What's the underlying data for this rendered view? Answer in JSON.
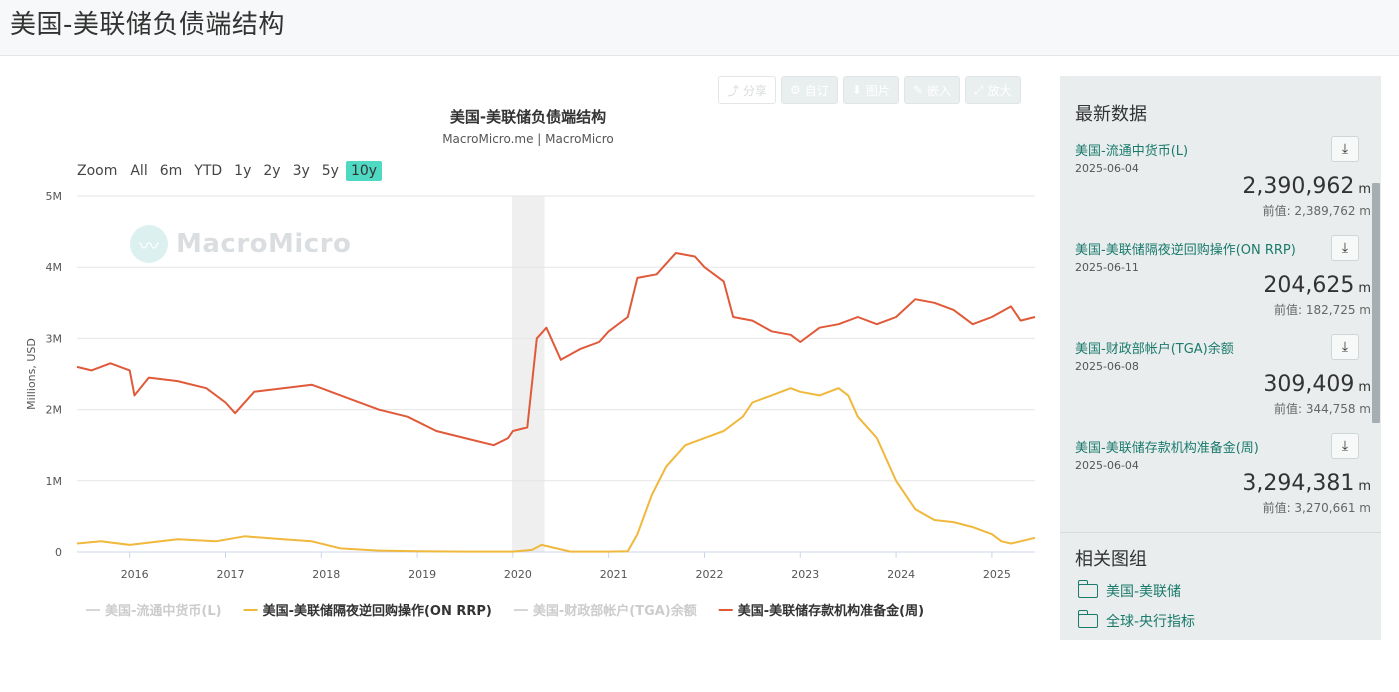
{
  "page": {
    "title": "美国-美联储负债端结构"
  },
  "toolbar": {
    "share": "分享",
    "custom": "自订",
    "image": "图片",
    "embed": "嵌入",
    "zoom": "放大"
  },
  "chart": {
    "title": "美国-美联储负债端结构",
    "subtitle": "MacroMicro.me | MacroMicro",
    "watermark": "MacroMicro",
    "zoom_label": "Zoom",
    "zoom_options": [
      "All",
      "6m",
      "YTD",
      "1y",
      "2y",
      "3y",
      "5y",
      "10y"
    ],
    "zoom_active": "10y",
    "legend": [
      {
        "label": "美国-流通中货币(L)",
        "color": "#d6d6d6",
        "active": false
      },
      {
        "label": "美国-美联储隔夜逆回购操作(ON RRP)",
        "color": "#f0b83c",
        "active": true
      },
      {
        "label": "美国-财政部帐户(TGA)余额",
        "color": "#d6d6d6",
        "active": false
      },
      {
        "label": "美国-美联储存款机构准备金(周)",
        "color": "#e05a3a",
        "active": true
      }
    ]
  },
  "chart_data": {
    "type": "line",
    "ylabel": "Millions, USD",
    "ylim": [
      0,
      5000000
    ],
    "y_ticks": [
      "0",
      "1M",
      "2M",
      "3M",
      "4M",
      "5M"
    ],
    "x_ticks": [
      "2016",
      "2017",
      "2018",
      "2019",
      "2020",
      "2021",
      "2022",
      "2023",
      "2024",
      "2025"
    ],
    "xlim": [
      2015.45,
      2025.45
    ],
    "shaded_band": [
      2019.99,
      2020.33
    ],
    "series": [
      {
        "name": "美国-美联储存款机构准备金(周)",
        "color": "#e05a3a",
        "x": [
          2015.45,
          2015.6,
          2015.8,
          2016.0,
          2016.05,
          2016.2,
          2016.5,
          2016.8,
          2017.0,
          2017.1,
          2017.3,
          2017.6,
          2017.9,
          2018.0,
          2018.3,
          2018.6,
          2018.9,
          2019.2,
          2019.5,
          2019.8,
          2019.95,
          2020.0,
          2020.15,
          2020.25,
          2020.35,
          2020.5,
          2020.7,
          2020.9,
          2021.0,
          2021.2,
          2021.3,
          2021.5,
          2021.7,
          2021.9,
          2022.0,
          2022.2,
          2022.3,
          2022.5,
          2022.7,
          2022.9,
          2023.0,
          2023.2,
          2023.4,
          2023.6,
          2023.8,
          2024.0,
          2024.2,
          2024.4,
          2024.6,
          2024.8,
          2025.0,
          2025.2,
          2025.3,
          2025.45
        ],
        "values": [
          2600000,
          2550000,
          2650000,
          2550000,
          2200000,
          2450000,
          2400000,
          2300000,
          2100000,
          1950000,
          2250000,
          2300000,
          2350000,
          2300000,
          2150000,
          2000000,
          1900000,
          1700000,
          1600000,
          1500000,
          1600000,
          1700000,
          1750000,
          3000000,
          3150000,
          2700000,
          2850000,
          2950000,
          3100000,
          3300000,
          3850000,
          3900000,
          4200000,
          4150000,
          4000000,
          3800000,
          3300000,
          3250000,
          3100000,
          3050000,
          2950000,
          3150000,
          3200000,
          3300000,
          3200000,
          3300000,
          3550000,
          3500000,
          3400000,
          3200000,
          3300000,
          3450000,
          3250000,
          3300000
        ]
      },
      {
        "name": "美国-美联储隔夜逆回购操作(ON RRP)",
        "color": "#f0b83c",
        "x": [
          2015.45,
          2015.7,
          2016.0,
          2016.5,
          2016.9,
          2017.2,
          2017.6,
          2017.9,
          2018.2,
          2018.6,
          2019.0,
          2019.5,
          2020.0,
          2020.2,
          2020.3,
          2020.6,
          2021.0,
          2021.2,
          2021.3,
          2021.45,
          2021.6,
          2021.8,
          2022.0,
          2022.2,
          2022.4,
          2022.5,
          2022.7,
          2022.9,
          2023.0,
          2023.2,
          2023.4,
          2023.5,
          2023.6,
          2023.8,
          2024.0,
          2024.2,
          2024.4,
          2024.6,
          2024.8,
          2025.0,
          2025.1,
          2025.2,
          2025.3,
          2025.45
        ],
        "values": [
          120000,
          150000,
          100000,
          180000,
          150000,
          220000,
          180000,
          150000,
          50000,
          20000,
          10000,
          5000,
          5000,
          30000,
          100000,
          5000,
          5000,
          10000,
          250000,
          800000,
          1200000,
          1500000,
          1600000,
          1700000,
          1900000,
          2100000,
          2200000,
          2300000,
          2250000,
          2200000,
          2300000,
          2200000,
          1900000,
          1600000,
          1000000,
          600000,
          450000,
          420000,
          350000,
          250000,
          150000,
          120000,
          150000,
          200000
        ]
      }
    ]
  },
  "sidebar": {
    "latest_heading": "最新数据",
    "latest": [
      {
        "name": "美国-流通中货币(L)",
        "date": "2025-06-04",
        "value": "2,390,962",
        "unit": "m",
        "prev": "前值: 2,389,762 m"
      },
      {
        "name": "美国-美联储隔夜逆回购操作(ON RRP)",
        "date": "2025-06-11",
        "value": "204,625",
        "unit": "m",
        "prev": "前值: 182,725 m"
      },
      {
        "name": "美国-财政部帐户(TGA)余额",
        "date": "2025-06-08",
        "value": "309,409",
        "unit": "m",
        "prev": "前值: 344,758 m"
      },
      {
        "name": "美国-美联储存款机构准备金(周)",
        "date": "2025-06-04",
        "value": "3,294,381",
        "unit": "m",
        "prev": "前值: 3,270,661 m"
      }
    ],
    "related_heading": "相关图组",
    "related": [
      {
        "label": "美国-美联储"
      },
      {
        "label": "全球-央行指标"
      }
    ]
  }
}
